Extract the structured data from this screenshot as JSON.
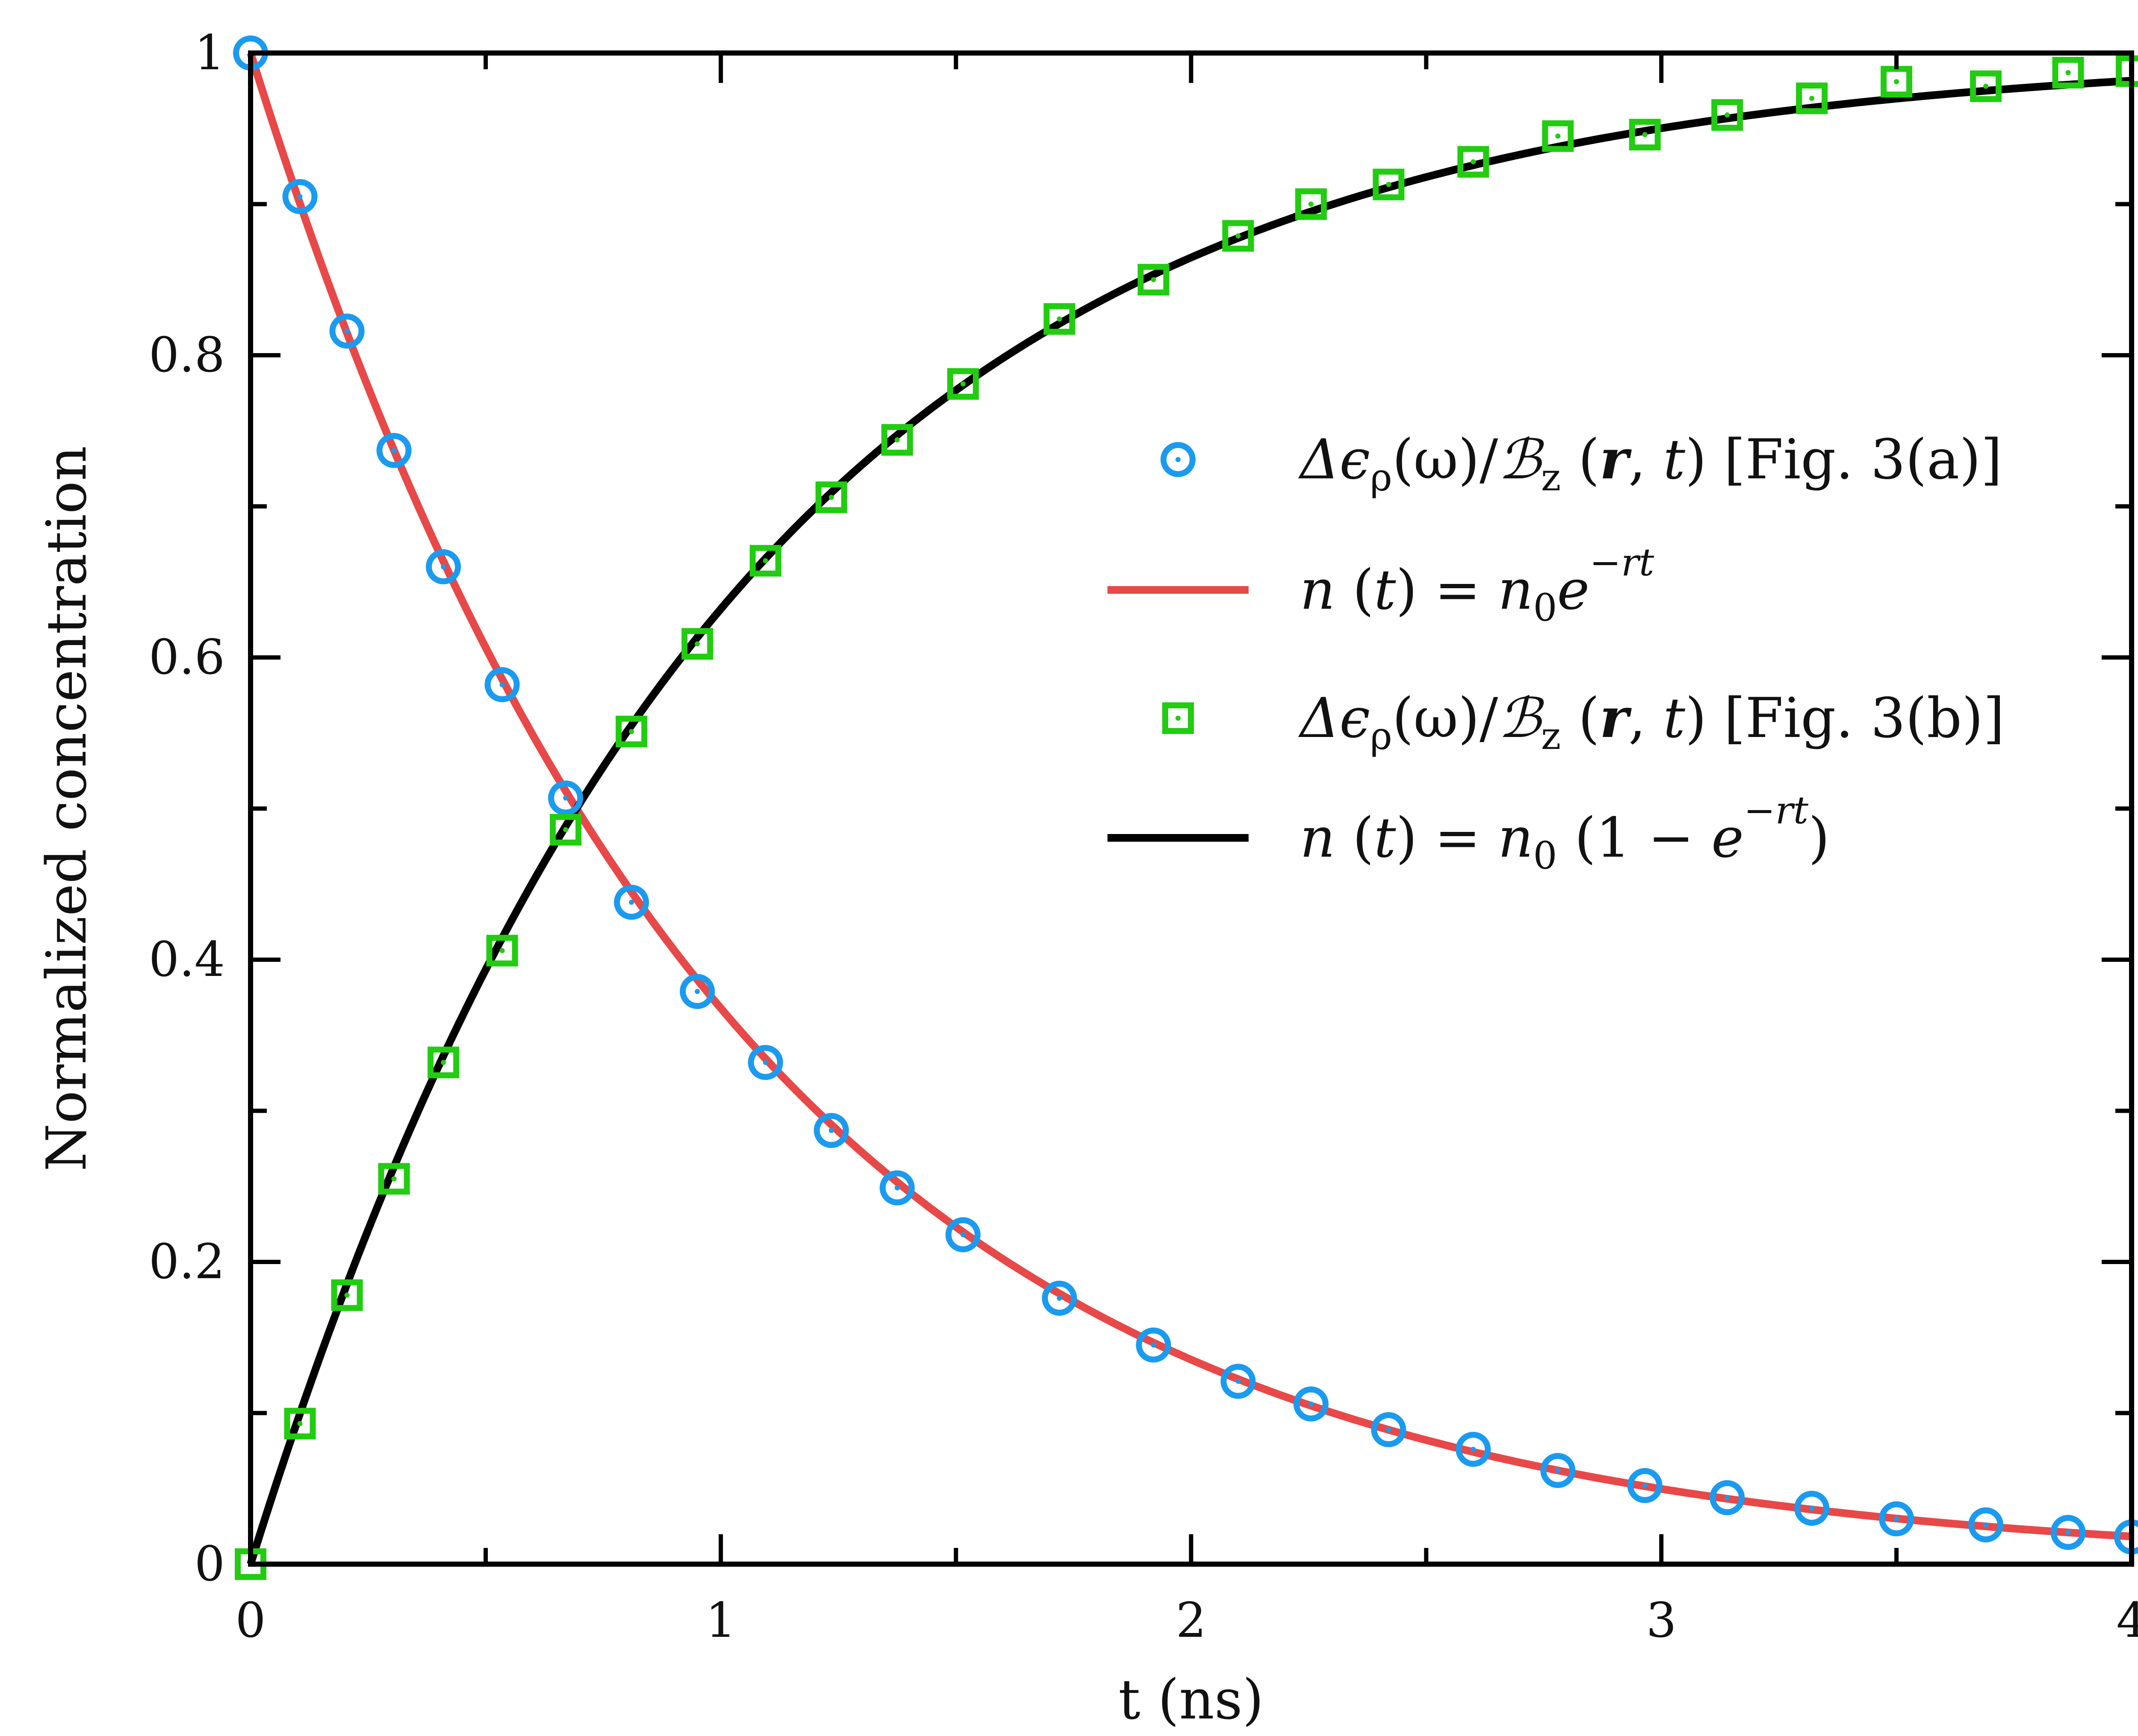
{
  "chart_data": {
    "type": "line",
    "xlabel": "t (ns)",
    "ylabel": "Normalized concentration",
    "xlim": [
      0,
      4
    ],
    "ylim": [
      0,
      1
    ],
    "xticks": [
      "0",
      "1",
      "2",
      "3",
      "4"
    ],
    "yticks": [
      "0",
      "0.2",
      "0.4",
      "0.6",
      "0.8",
      "1"
    ],
    "grid": false,
    "legend_position": "right",
    "series": [
      {
        "name": "Δϵρ(ω)/Bz (r, t) [Fig. 3(a)]",
        "kind": "scatter",
        "marker": "circle",
        "color": "#1a9bf0",
        "x": [
          0,
          0.105,
          0.205,
          0.305,
          0.41,
          0.535,
          0.67,
          0.81,
          0.95,
          1.095,
          1.235,
          1.375,
          1.515,
          1.72,
          1.92,
          2.1,
          2.255,
          2.42,
          2.6,
          2.78,
          2.965,
          3.14,
          3.32,
          3.5,
          3.69,
          3.865,
          4.0
        ],
        "y": [
          1.0,
          0.905,
          0.816,
          0.737,
          0.66,
          0.582,
          0.507,
          0.438,
          0.379,
          0.332,
          0.287,
          0.249,
          0.218,
          0.176,
          0.145,
          0.121,
          0.106,
          0.089,
          0.076,
          0.062,
          0.052,
          0.044,
          0.037,
          0.03,
          0.026,
          0.021,
          0.018
        ]
      },
      {
        "name": "n (t) = n0e−rt",
        "kind": "line",
        "color": "#e84848",
        "function": "exp_decay",
        "n0": 1,
        "rate": 1
      },
      {
        "name": "Δϵρ(ω)/Bz (r, t) [Fig. 3(b)]",
        "kind": "scatter",
        "marker": "square",
        "color": "#22cc11",
        "x": [
          0,
          0.105,
          0.205,
          0.305,
          0.41,
          0.535,
          0.67,
          0.81,
          0.95,
          1.095,
          1.235,
          1.375,
          1.515,
          1.72,
          1.92,
          2.1,
          2.255,
          2.42,
          2.6,
          2.78,
          2.965,
          3.14,
          3.32,
          3.5,
          3.69,
          3.865,
          4.0
        ],
        "y": [
          0.0,
          0.093,
          0.178,
          0.255,
          0.332,
          0.406,
          0.486,
          0.551,
          0.609,
          0.664,
          0.706,
          0.744,
          0.781,
          0.824,
          0.85,
          0.879,
          0.9,
          0.913,
          0.928,
          0.945,
          0.946,
          0.959,
          0.97,
          0.981,
          0.978,
          0.987,
          0.988
        ]
      },
      {
        "name": "n (t) = n0 (1 − e−rt)",
        "kind": "line",
        "color": "#000000",
        "function": "exp_rise",
        "n0": 1,
        "rate": 1
      }
    ]
  },
  "legend": [
    {
      "marker": "circle",
      "color": "#1a9bf0",
      "parts": [
        "Δϵ",
        "ρ",
        "(ω)/",
        "ℬ",
        "z",
        " (",
        "r",
        ", ",
        "t",
        ") [Fig. 3(a)]"
      ]
    },
    {
      "marker": "line",
      "color": "#e84848",
      "parts": [
        "n",
        " (",
        "t",
        ") = ",
        "n",
        "0",
        "e",
        "−rt"
      ]
    },
    {
      "marker": "square",
      "color": "#22cc11",
      "parts": [
        "Δϵ",
        "ρ",
        "(ω)/",
        "ℬ",
        "z",
        " (",
        "r",
        ", ",
        "t",
        ") [Fig. 3(b)]"
      ]
    },
    {
      "marker": "line",
      "color": "#000000",
      "parts": [
        "n",
        " (",
        "t",
        ") = ",
        "n",
        "0",
        " (1 − ",
        "e",
        "−rt",
        ")"
      ]
    }
  ]
}
